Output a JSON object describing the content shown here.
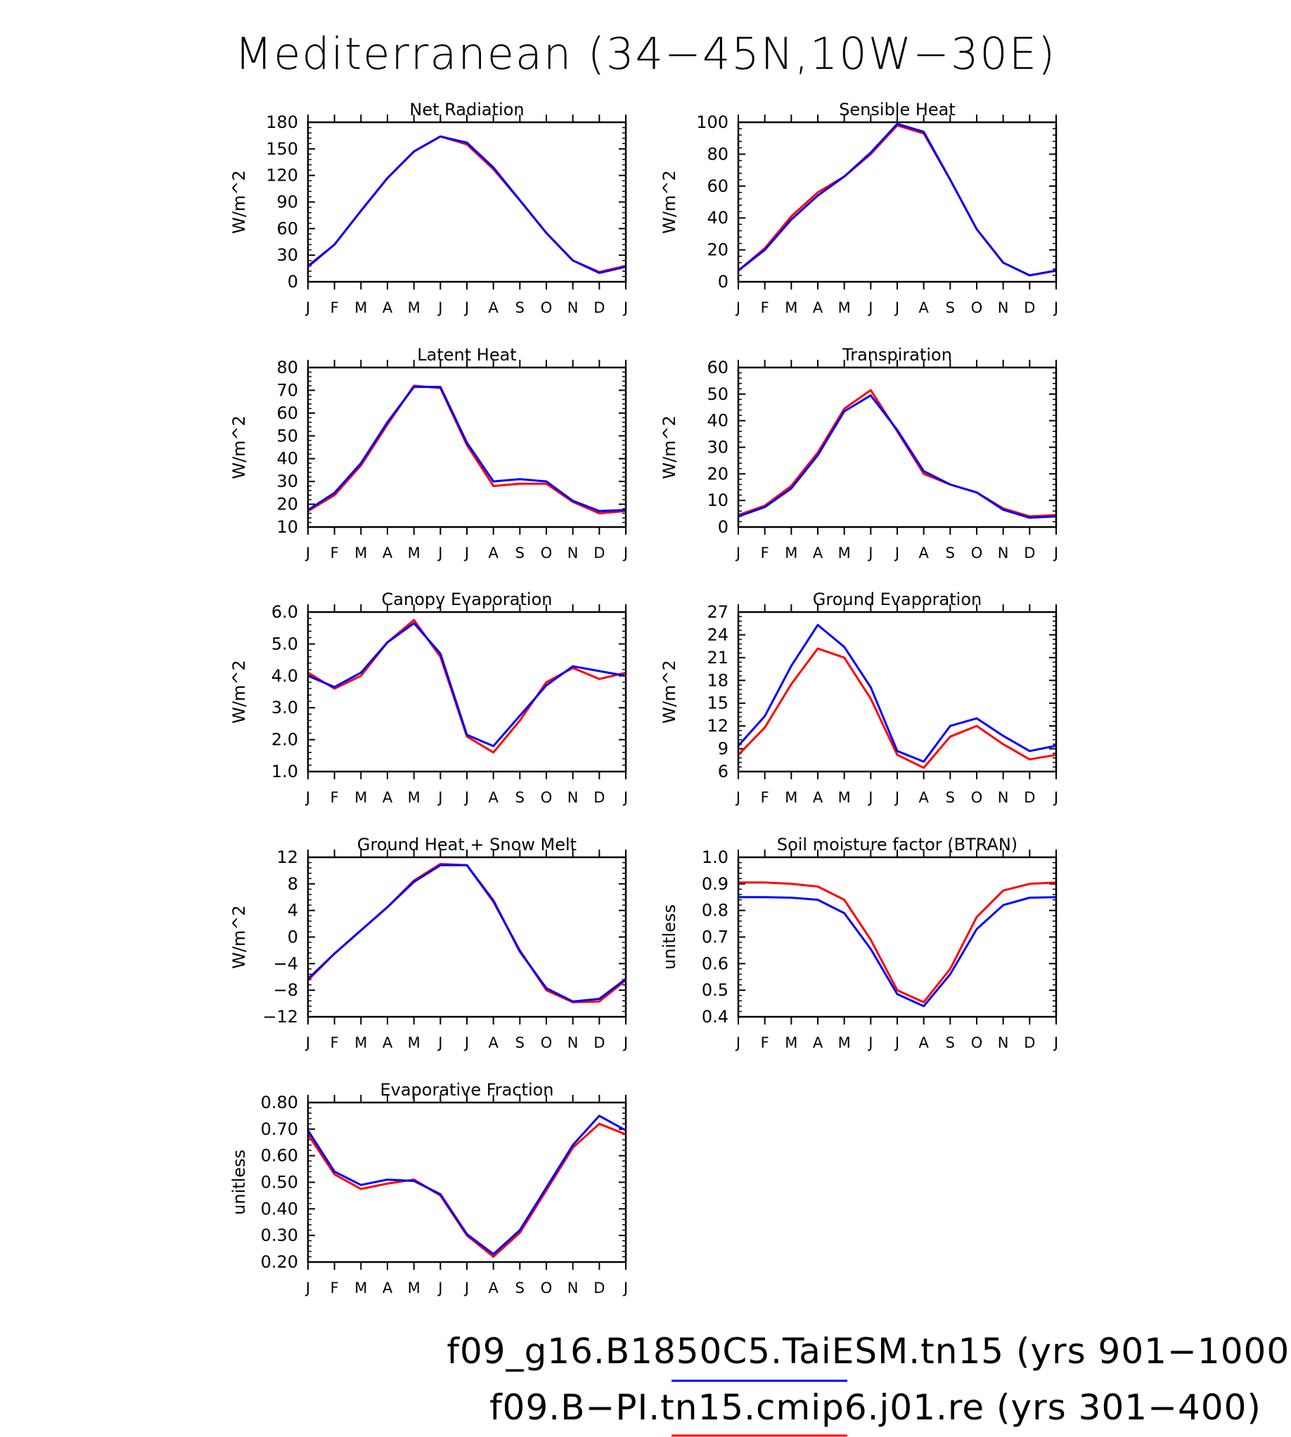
{
  "figure": {
    "title": "Mediterranean (34−45N,10W−30E)",
    "legend": [
      {
        "label": "f09_g16.B1850C5.TaiESM.tn15 (yrs 901−1000)",
        "color": "#0000ff"
      },
      {
        "label": "f09.B−PI.tn15.cmip6.j01.re (yrs 301−400)",
        "color": "#ff0000"
      }
    ]
  },
  "chart_data": [
    {
      "type": "line",
      "title": "Net Radiation",
      "ylabel": "W/m^2",
      "categories": [
        "J",
        "F",
        "M",
        "A",
        "M",
        "J",
        "J",
        "A",
        "S",
        "O",
        "N",
        "D",
        "J"
      ],
      "ylim": [
        0,
        180
      ],
      "yticks": [
        "0",
        "30",
        "60",
        "90",
        "120",
        "150",
        "180"
      ],
      "series": [
        {
          "color": "#ff0000",
          "values": [
            18,
            42,
            80,
            117,
            147,
            164,
            155,
            127,
            92,
            55,
            24,
            11,
            18
          ]
        },
        {
          "color": "#0000ff",
          "values": [
            17,
            42,
            80,
            117,
            147,
            164,
            157,
            129,
            92,
            55,
            24,
            10,
            17
          ]
        }
      ]
    },
    {
      "type": "line",
      "title": "Sensible Heat",
      "ylabel": "W/m^2",
      "categories": [
        "J",
        "F",
        "M",
        "A",
        "M",
        "J",
        "J",
        "A",
        "S",
        "O",
        "N",
        "D",
        "J"
      ],
      "ylim": [
        0,
        100
      ],
      "yticks": [
        "0",
        "20",
        "40",
        "60",
        "80",
        "100"
      ],
      "series": [
        {
          "color": "#ff0000",
          "values": [
            7,
            21,
            41,
            56,
            66,
            80,
            98,
            93,
            64,
            33,
            12,
            4,
            7
          ]
        },
        {
          "color": "#0000ff",
          "values": [
            7,
            20,
            39,
            54,
            66,
            81,
            99,
            94,
            64,
            33,
            12,
            4,
            7
          ]
        }
      ]
    },
    {
      "type": "line",
      "title": "Latent Heat",
      "ylabel": "W/m^2",
      "categories": [
        "J",
        "F",
        "M",
        "A",
        "M",
        "J",
        "J",
        "A",
        "S",
        "O",
        "N",
        "D",
        "J"
      ],
      "ylim": [
        10,
        80
      ],
      "yticks": [
        "10",
        "20",
        "30",
        "40",
        "50",
        "60",
        "70",
        "80"
      ],
      "series": [
        {
          "color": "#ff0000",
          "values": [
            17,
            24,
            37,
            55,
            72,
            71,
            46,
            28,
            29,
            29,
            21,
            16,
            17
          ]
        },
        {
          "color": "#0000ff",
          "values": [
            17.5,
            25,
            38,
            56,
            71.5,
            71.5,
            47,
            30,
            31,
            30,
            21.5,
            17,
            17.5
          ]
        }
      ]
    },
    {
      "type": "line",
      "title": "Transpiration",
      "ylabel": "W/m^2",
      "categories": [
        "J",
        "F",
        "M",
        "A",
        "M",
        "J",
        "J",
        "A",
        "S",
        "O",
        "N",
        "D",
        "J"
      ],
      "ylim": [
        0,
        60
      ],
      "yticks": [
        "0",
        "10",
        "20",
        "30",
        "40",
        "50",
        "60"
      ],
      "series": [
        {
          "color": "#ff0000",
          "values": [
            4.5,
            8,
            15.5,
            28,
            44.5,
            51.5,
            36,
            20,
            16,
            13,
            7,
            4,
            4.5
          ]
        },
        {
          "color": "#0000ff",
          "values": [
            4,
            7.5,
            14.5,
            27,
            43.5,
            49.5,
            36.5,
            21,
            16,
            13,
            6.5,
            3.5,
            4
          ]
        }
      ]
    },
    {
      "type": "line",
      "title": "Canopy Evaporation",
      "ylabel": "W/m^2",
      "categories": [
        "J",
        "F",
        "M",
        "A",
        "M",
        "J",
        "J",
        "A",
        "S",
        "O",
        "N",
        "D",
        "J"
      ],
      "ylim": [
        1.0,
        6.0
      ],
      "yticks": [
        "1.0",
        "2.0",
        "3.0",
        "4.0",
        "5.0",
        "6.0"
      ],
      "series": [
        {
          "color": "#ff0000",
          "values": [
            4.1,
            3.6,
            4.0,
            5.05,
            5.75,
            4.6,
            2.1,
            1.6,
            2.6,
            3.8,
            4.25,
            3.9,
            4.1
          ]
        },
        {
          "color": "#0000ff",
          "values": [
            4.0,
            3.65,
            4.1,
            5.05,
            5.65,
            4.7,
            2.15,
            1.8,
            2.75,
            3.7,
            4.3,
            4.15,
            4.0
          ]
        }
      ]
    },
    {
      "type": "line",
      "title": "Ground Evaporation",
      "ylabel": "W/m^2",
      "categories": [
        "J",
        "F",
        "M",
        "A",
        "M",
        "J",
        "J",
        "A",
        "S",
        "O",
        "N",
        "D",
        "J"
      ],
      "ylim": [
        6,
        27
      ],
      "yticks": [
        "6",
        "9",
        "12",
        "15",
        "18",
        "21",
        "24",
        "27"
      ],
      "series": [
        {
          "color": "#ff0000",
          "values": [
            8.2,
            11.8,
            17.5,
            22.2,
            21,
            15.6,
            8.2,
            6.5,
            10.6,
            12,
            9.6,
            7.6,
            8.2
          ]
        },
        {
          "color": "#0000ff",
          "values": [
            9.4,
            13.3,
            19.9,
            25.3,
            22.4,
            17.1,
            8.7,
            7.3,
            12,
            13,
            10.7,
            8.7,
            9.4
          ]
        }
      ]
    },
    {
      "type": "line",
      "title": "Ground Heat + Snow Melt",
      "ylabel": "W/m^2",
      "categories": [
        "J",
        "F",
        "M",
        "A",
        "M",
        "J",
        "J",
        "A",
        "S",
        "O",
        "N",
        "D",
        "J"
      ],
      "ylim": [
        -12,
        12
      ],
      "yticks": [
        "−12",
        "−8",
        "−4",
        "0",
        "4",
        "8",
        "12"
      ],
      "series": [
        {
          "color": "#ff0000",
          "values": [
            -6.5,
            -2.5,
            1,
            4.5,
            8.5,
            11,
            10.8,
            5.3,
            -2,
            -8,
            -9.8,
            -9.7,
            -6.5
          ]
        },
        {
          "color": "#0000ff",
          "values": [
            -6.3,
            -2.5,
            1,
            4.5,
            8.3,
            10.8,
            10.8,
            5.5,
            -2.2,
            -7.7,
            -9.7,
            -9.3,
            -6.3
          ]
        }
      ]
    },
    {
      "type": "line",
      "title": "Soil moisture factor (BTRAN)",
      "ylabel": "unitless",
      "categories": [
        "J",
        "F",
        "M",
        "A",
        "M",
        "J",
        "J",
        "A",
        "S",
        "O",
        "N",
        "D",
        "J"
      ],
      "ylim": [
        0.4,
        1.0
      ],
      "yticks": [
        "0.4",
        "0.5",
        "0.6",
        "0.7",
        "0.8",
        "0.9",
        "1.0"
      ],
      "series": [
        {
          "color": "#ff0000",
          "values": [
            0.905,
            0.905,
            0.9,
            0.89,
            0.84,
            0.69,
            0.5,
            0.455,
            0.58,
            0.775,
            0.875,
            0.9,
            0.905
          ]
        },
        {
          "color": "#0000ff",
          "values": [
            0.85,
            0.85,
            0.848,
            0.84,
            0.79,
            0.655,
            0.485,
            0.44,
            0.56,
            0.73,
            0.82,
            0.848,
            0.85
          ]
        }
      ]
    },
    {
      "type": "line",
      "title": "Evaporative Fraction",
      "ylabel": "unitless",
      "categories": [
        "J",
        "F",
        "M",
        "A",
        "M",
        "J",
        "J",
        "A",
        "S",
        "O",
        "N",
        "D",
        "J"
      ],
      "ylim": [
        0.2,
        0.8
      ],
      "yticks": [
        "0.20",
        "0.30",
        "0.40",
        "0.50",
        "0.60",
        "0.70",
        "0.80"
      ],
      "series": [
        {
          "color": "#ff0000",
          "values": [
            0.68,
            0.53,
            0.475,
            0.495,
            0.51,
            0.45,
            0.3,
            0.22,
            0.31,
            0.47,
            0.63,
            0.72,
            0.68
          ]
        },
        {
          "color": "#0000ff",
          "values": [
            0.695,
            0.54,
            0.49,
            0.51,
            0.505,
            0.455,
            0.305,
            0.23,
            0.32,
            0.48,
            0.64,
            0.75,
            0.695
          ]
        }
      ]
    }
  ]
}
